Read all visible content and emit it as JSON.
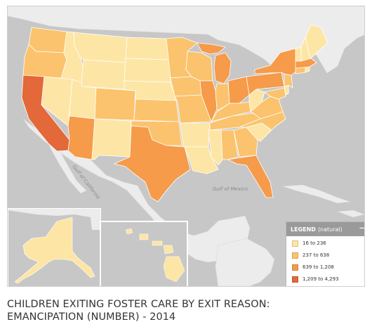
{
  "map": {
    "colors": {
      "c1": "#fde5a5",
      "c2": "#fbc36d",
      "c3": "#f59b4a",
      "c4": "#e3683a",
      "land": "#ececec",
      "water": "#c7c7c7"
    },
    "labels": {
      "gulf_california": "Gulf of California",
      "gulf_mexico": "Gulf of Mexico"
    }
  },
  "legend": {
    "title": "LEGEND",
    "subtitle": "(natural)",
    "toggle_icon": "minus-icon",
    "items": [
      {
        "label": "16 to 236",
        "color": "#fde5a5"
      },
      {
        "label": "237 to 638",
        "color": "#fbc36d"
      },
      {
        "label": "639 to 1,208",
        "color": "#f59b4a"
      },
      {
        "label": "1,209 to 4,293",
        "color": "#e3683a"
      }
    ]
  },
  "title": {
    "line1": "CHILDREN EXITING FOSTER CARE BY EXIT REASON:",
    "line2": "EMANCIPATION (NUMBER) - 2014"
  }
}
